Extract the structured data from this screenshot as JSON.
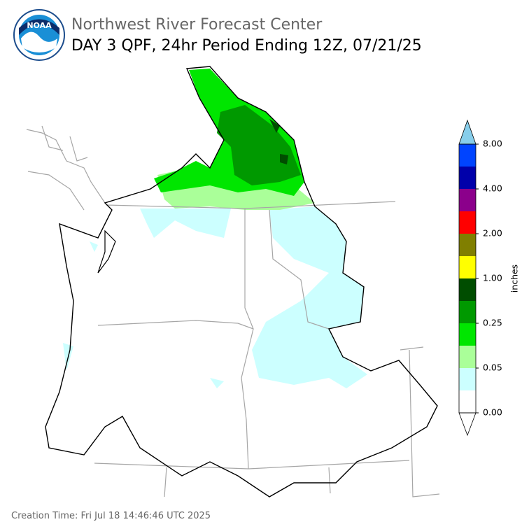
{
  "header": {
    "logo": "NOAA",
    "agency": "Northwest River Forecast Center",
    "product": "DAY 3 QPF, 24hr Period Ending 12Z, 07/21/25"
  },
  "legend": {
    "unit": "inches",
    "under_color": "#ffffff",
    "over_color": "#87ceeb",
    "colors": [
      "#ffffff",
      "#ccffff",
      "#aaff99",
      "#00e600",
      "#009900",
      "#004d00",
      "#ffff00",
      "#807f00",
      "#ff0000",
      "#8b008b",
      "#0000aa",
      "#0044ff"
    ],
    "ticks": [
      "0.00",
      "0.05",
      "0.25",
      "1.00",
      "2.00",
      "4.00",
      "8.00"
    ]
  },
  "footer": {
    "creation_time": "Creation Time: Fri Jul 18 14:46:46 UTC 2025"
  }
}
